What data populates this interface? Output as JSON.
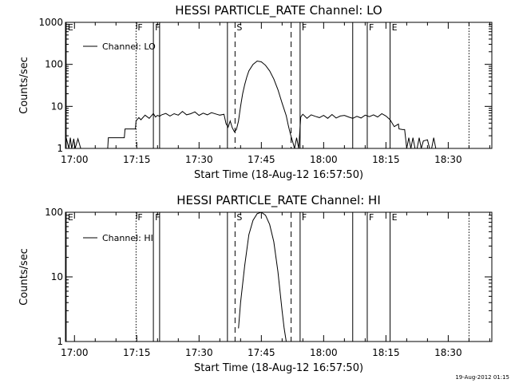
{
  "chart_data": [
    {
      "type": "line",
      "title": "HESSI PARTICLE_RATE Channel: LO",
      "xlabel": "Start Time (18-Aug-12 16:57:50)",
      "ylabel": "Counts/sec",
      "y_scale": "log",
      "ylim": [
        1,
        1000
      ],
      "xlim": [
        "16:57:50",
        "18:40:30"
      ],
      "x_ticks": [
        "17:00",
        "17:15",
        "17:30",
        "17:45",
        "18:00",
        "18:15",
        "18:30"
      ],
      "y_ticks": [
        "1",
        "10",
        "100",
        "1000"
      ],
      "legend": {
        "entries": [
          "Channel: LO"
        ],
        "placement": "top-left"
      },
      "markers": [
        {
          "time": "16:58:00",
          "label": "E",
          "style": "solid"
        },
        {
          "time": "17:14:50",
          "label": "F",
          "style": "dotted"
        },
        {
          "time": "17:19:00",
          "label": "F",
          "style": "solid"
        },
        {
          "time": "17:20:30",
          "label": "",
          "style": "solid"
        },
        {
          "time": "17:36:50",
          "label": "",
          "style": "solid"
        },
        {
          "time": "17:38:40",
          "label": "S",
          "style": "dashed"
        },
        {
          "time": "17:52:10",
          "label": "",
          "style": "dashed"
        },
        {
          "time": "17:54:20",
          "label": "F",
          "style": "solid"
        },
        {
          "time": "18:07:00",
          "label": "",
          "style": "solid"
        },
        {
          "time": "18:10:30",
          "label": "F",
          "style": "solid"
        },
        {
          "time": "18:16:00",
          "label": "E",
          "style": "solid"
        },
        {
          "time": "18:35:00",
          "label": "",
          "style": "dotted"
        }
      ],
      "series": [
        {
          "name": "Channel: LO",
          "x": [
            "16:58:00",
            "16:58:40",
            "16:59:00",
            "16:59:20",
            "16:59:50",
            "17:00:10",
            "17:00:50",
            "17:01:30",
            "17:02:00",
            "17:08:00",
            "17:08:10",
            "17:12:00",
            "17:12:10",
            "17:14:40",
            "17:14:50",
            "17:15:30",
            "17:16:00",
            "17:17:00",
            "17:18:00",
            "17:19:00",
            "17:19:30",
            "17:20:00",
            "17:20:30",
            "17:21:00",
            "17:22:00",
            "17:23:00",
            "17:24:00",
            "17:25:00",
            "17:26:00",
            "17:27:00",
            "17:28:00",
            "17:29:00",
            "17:30:00",
            "17:31:00",
            "17:32:00",
            "17:33:00",
            "17:34:00",
            "17:35:00",
            "17:36:00",
            "17:36:30",
            "17:37:00",
            "17:37:30",
            "17:38:00",
            "17:38:30",
            "17:39:00",
            "17:39:30",
            "17:40:00",
            "17:40:30",
            "17:41:00",
            "17:41:30",
            "17:42:00",
            "17:43:00",
            "17:44:00",
            "17:45:00",
            "17:46:00",
            "17:47:00",
            "17:48:00",
            "17:49:00",
            "17:50:00",
            "17:51:00",
            "17:51:30",
            "17:52:00",
            "17:52:30",
            "17:53:00",
            "17:53:30",
            "17:54:00",
            "17:54:30",
            "17:55:00",
            "17:56:00",
            "17:57:00",
            "17:58:00",
            "17:59:00",
            "18:00:00",
            "18:01:00",
            "18:02:00",
            "18:03:00",
            "18:04:00",
            "18:05:00",
            "18:06:00",
            "18:07:00",
            "18:08:00",
            "18:09:00",
            "18:10:00",
            "18:11:00",
            "18:12:00",
            "18:13:00",
            "18:14:00",
            "18:15:00",
            "18:16:00",
            "18:17:00",
            "18:18:00",
            "18:18:10",
            "18:19:00",
            "18:19:30",
            "18:20:00",
            "18:20:30",
            "18:21:00",
            "18:21:30",
            "18:22:00",
            "18:22:30",
            "18:23:00",
            "18:23:30",
            "18:24:00",
            "18:25:00",
            "18:25:30",
            "18:26:00",
            "18:26:30",
            "18:27:00",
            "18:28:00"
          ],
          "values": [
            1.8,
            1,
            1.8,
            1,
            1.7,
            1,
            1.7,
            1,
            1,
            1,
            1.8,
            1.8,
            2.9,
            2.9,
            4.5,
            5.4,
            4.8,
            6.2,
            5.2,
            6.8,
            5.6,
            6.1,
            5.8,
            6.3,
            6.8,
            5.9,
            6.7,
            6.2,
            7.6,
            6.3,
            6.7,
            7.4,
            6.1,
            6.9,
            6.3,
            7.1,
            6.6,
            6.2,
            6.5,
            3.9,
            3.2,
            4.5,
            3.1,
            2.5,
            2.8,
            4.5,
            10,
            20,
            33,
            50,
            70,
            100,
            120,
            115,
            95,
            70,
            45,
            25,
            12,
            6,
            3.5,
            2.2,
            1.5,
            1,
            1.8,
            1,
            5.6,
            6.5,
            5.2,
            6.3,
            5.8,
            5.4,
            6.1,
            5.2,
            6.4,
            5.3,
            5.9,
            6.1,
            5.6,
            5.2,
            5.8,
            5.3,
            6.2,
            5.7,
            6.3,
            5.6,
            6.7,
            5.9,
            4.8,
            3.3,
            3.8,
            2.9,
            2.8,
            2.8,
            1,
            1.8,
            1,
            1.8,
            1,
            1,
            1.8,
            1,
            1.5,
            1.6,
            1,
            1,
            1.8,
            1,
            1
          ]
        }
      ]
    },
    {
      "type": "line",
      "title": "HESSI PARTICLE_RATE Channel: HI",
      "xlabel": "Start Time (18-Aug-12 16:57:50)",
      "ylabel": "Counts/sec",
      "y_scale": "log",
      "ylim": [
        1,
        100
      ],
      "xlim": [
        "16:57:50",
        "18:40:30"
      ],
      "x_ticks": [
        "17:00",
        "17:15",
        "17:30",
        "17:45",
        "18:00",
        "18:15",
        "18:30"
      ],
      "y_ticks": [
        "1",
        "10",
        "100"
      ],
      "legend": {
        "entries": [
          "Channel: HI"
        ],
        "placement": "top-left"
      },
      "markers": [
        {
          "time": "16:58:00",
          "label": "E",
          "style": "solid"
        },
        {
          "time": "17:14:50",
          "label": "F",
          "style": "dotted"
        },
        {
          "time": "17:19:00",
          "label": "F",
          "style": "solid"
        },
        {
          "time": "17:20:30",
          "label": "",
          "style": "solid"
        },
        {
          "time": "17:36:50",
          "label": "",
          "style": "solid"
        },
        {
          "time": "17:38:40",
          "label": "S",
          "style": "dashed"
        },
        {
          "time": "17:52:10",
          "label": "",
          "style": "dashed"
        },
        {
          "time": "17:54:20",
          "label": "F",
          "style": "solid"
        },
        {
          "time": "18:07:00",
          "label": "",
          "style": "solid"
        },
        {
          "time": "18:10:30",
          "label": "F",
          "style": "solid"
        },
        {
          "time": "18:16:00",
          "label": "E",
          "style": "solid"
        },
        {
          "time": "18:35:00",
          "label": "",
          "style": "dotted"
        }
      ],
      "series": [
        {
          "name": "Channel: HI",
          "x": [
            "17:39:30",
            "17:40:00",
            "17:41:00",
            "17:42:00",
            "17:43:00",
            "17:44:00",
            "17:45:00",
            "17:46:00",
            "17:47:00",
            "17:48:00",
            "17:49:00",
            "17:50:00",
            "17:50:30",
            "17:51:00"
          ],
          "values": [
            1.6,
            4,
            15,
            45,
            75,
            95,
            100,
            90,
            65,
            35,
            12,
            3,
            1.6,
            1
          ]
        }
      ]
    }
  ],
  "timestamp": "19-Aug-2012 01:15"
}
